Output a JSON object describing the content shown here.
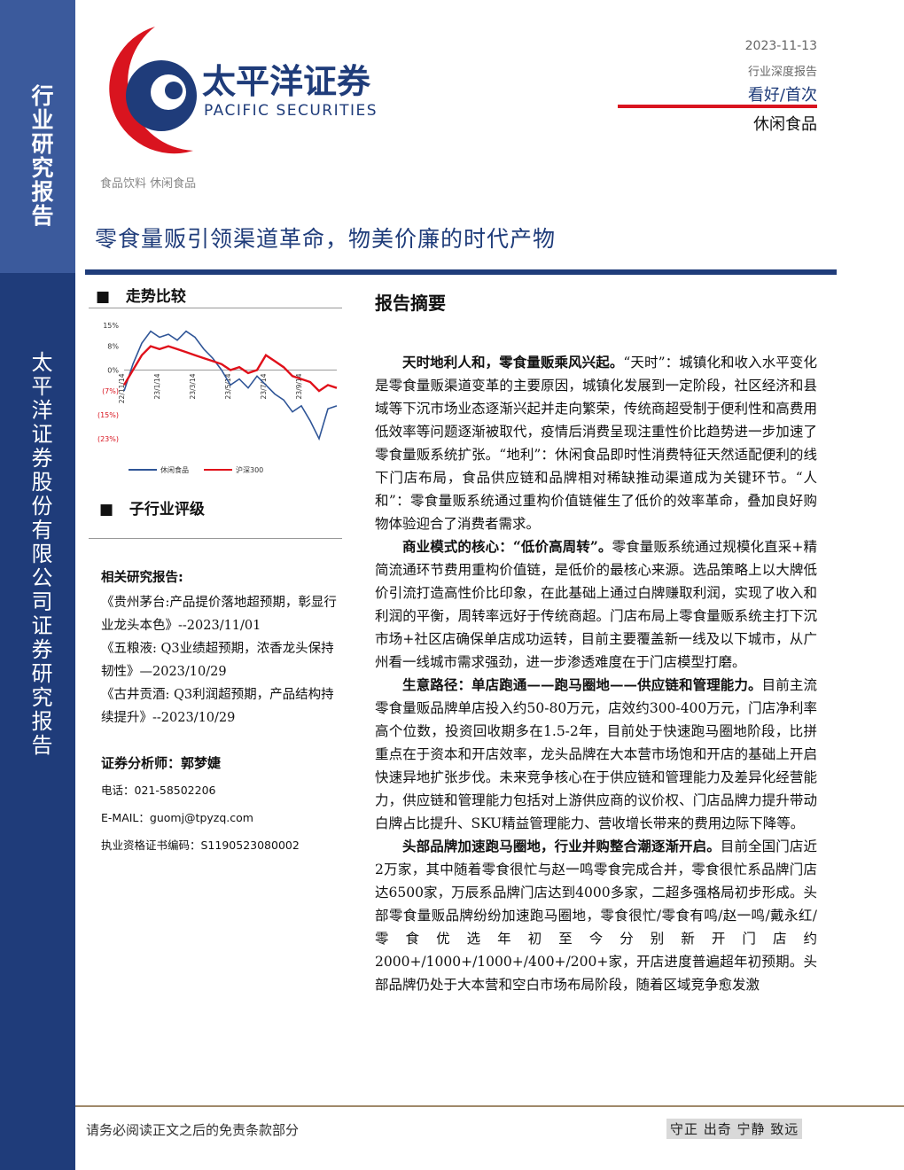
{
  "sidebar": {
    "top": "行业研究报告",
    "bottom": "太平洋证券股份有限公司证券研究报告"
  },
  "logo": {
    "name": "太平洋证券",
    "english": "PACIFIC SECURITIES"
  },
  "header": {
    "date": "2023-11-13",
    "report_type": "行业深度报告",
    "rating": "看好/首次",
    "sector": "休闲食品"
  },
  "breadcrumb": "食品饮料 休闲食品",
  "title": "零食量贩引领渠道革命，物美价廉的时代产物",
  "trend": {
    "heading": "走势比较"
  },
  "chart_data": {
    "type": "line",
    "categories": [
      "22/11/14",
      null,
      null,
      null,
      "23/1/14",
      null,
      null,
      null,
      "23/3/14",
      null,
      null,
      null,
      "23/5/14",
      null,
      null,
      null,
      "23/7/14",
      null,
      null,
      null,
      "23/9/14",
      null,
      null,
      null,
      null
    ],
    "series": [
      {
        "name": "休闲食品",
        "color": "#2f5597",
        "values": [
          -7,
          2,
          9,
          13,
          11,
          12,
          10,
          13,
          11,
          7,
          4,
          0,
          -5,
          -3,
          -6,
          -2,
          -5,
          -8,
          -10,
          -14,
          -12,
          -17,
          -23,
          -13,
          -12
        ]
      },
      {
        "name": "沪深300",
        "color": "#e0101a",
        "values": [
          -5,
          0,
          5,
          8,
          7,
          8,
          7,
          6,
          5,
          4,
          3,
          2,
          0,
          1,
          -1,
          0,
          5,
          3,
          1,
          -2,
          -3,
          -4,
          -7,
          -5,
          -6
        ]
      }
    ],
    "ylim": [
      -23,
      15
    ],
    "yticks": [
      {
        "value": 15,
        "label": "15%"
      },
      {
        "value": 8,
        "label": "8%"
      },
      {
        "value": 0,
        "label": "0%"
      },
      {
        "value": -7,
        "label": "(7%)"
      },
      {
        "value": -15,
        "label": "(15%)"
      },
      {
        "value": -23,
        "label": "(23%)"
      }
    ],
    "legend": "bottom"
  },
  "sub_rating": {
    "heading": "子行业评级"
  },
  "related": {
    "heading": "相关研究报告:",
    "items": [
      "《贵州茅台:产品提价落地超预期，彰显行业龙头本色》--2023/11/01",
      "《五粮液: Q3业绩超预期，浓香龙头保持韧性》—2023/10/29",
      "《古井贡酒: Q3利润超预期，产品结构持续提升》--2023/10/29"
    ]
  },
  "analyst": {
    "heading": "证券分析师：郭梦婕",
    "phone": "电话：021-58502206",
    "email": "E-MAIL：guomj@tpyzq.com",
    "license": "执业资格证书编码：S1190523080002"
  },
  "summary": {
    "heading": "报告摘要",
    "paragraphs": [
      {
        "lead": "天时地利人和，零食量贩乘风兴起。",
        "text": "“天时”：城镇化和收入水平变化是零食量贩渠道变革的主要原因，城镇化发展到一定阶段，社区经济和县域等下沉市场业态逐渐兴起并走向繁荣，传统商超受制于便利性和高费用低效率等问题逐渐被取代，疫情后消费呈现注重性价比趋势进一步加速了零食量贩系统扩张。“地利”：休闲食品即时性消费特征天然适配便利的线下门店布局，食品供应链和品牌相对稀缺推动渠道成为关键环节。“人和”：零食量贩系统通过重构价值链催生了低价的效率革命，叠加良好购物体验迎合了消费者需求。"
      },
      {
        "lead": "商业模式的核心：“低价高周转”。",
        "text": "零食量贩系统通过规模化直采+精简流通环节费用重构价值链，是低价的最核心来源。选品策略上以大牌低价引流打造高性价比印象，在此基础上通过白牌赚取利润，实现了收入和利润的平衡，周转率远好于传统商超。门店布局上零食量贩系统主打下沉市场+社区店确保单店成功运转，目前主要覆盖新一线及以下城市，从广州看一线城市需求强劲，进一步渗透难度在于门店模型打磨。"
      },
      {
        "lead": "生意路径：单店跑通——跑马圈地——供应链和管理能力。",
        "text": "目前主流零食量贩品牌单店投入约50-80万元，店效约300-400万元，门店净利率高个位数，投资回收期多在1.5-2年，目前处于快速跑马圈地阶段，比拼重点在于资本和开店效率，龙头品牌在大本营市场饱和开店的基础上开启快速异地扩张步伐。未来竞争核心在于供应链和管理能力及差异化经营能力，供应链和管理能力包括对上游供应商的议价权、门店品牌力提升带动白牌占比提升、SKU精益管理能力、营收增长带来的费用边际下降等。"
      },
      {
        "lead": "头部品牌加速跑马圈地，行业并购整合潮逐渐开启。",
        "text": "目前全国门店近2万家，其中随着零食很忙与赵一鸣零食完成合并，零食很忙系品牌门店达6500家，万辰系品牌门店达到4000多家，二超多强格局初步形成。头部零食量贩品牌纷纷加速跑马圈地，零食很忙/零食有鸣/赵一鸣/戴永红/零食优选年初至今分别新开门店约2000+/1000+/1000+/400+/200+家，开店进度普遍超年初预期。头部品牌仍处于大本营和空白市场布局阶段，随着区域竞争愈发激"
      }
    ]
  },
  "footer": {
    "disclaimer": "请务必阅读正文之后的免责条款部分",
    "motto": "守正 出奇 宁静 致远"
  }
}
